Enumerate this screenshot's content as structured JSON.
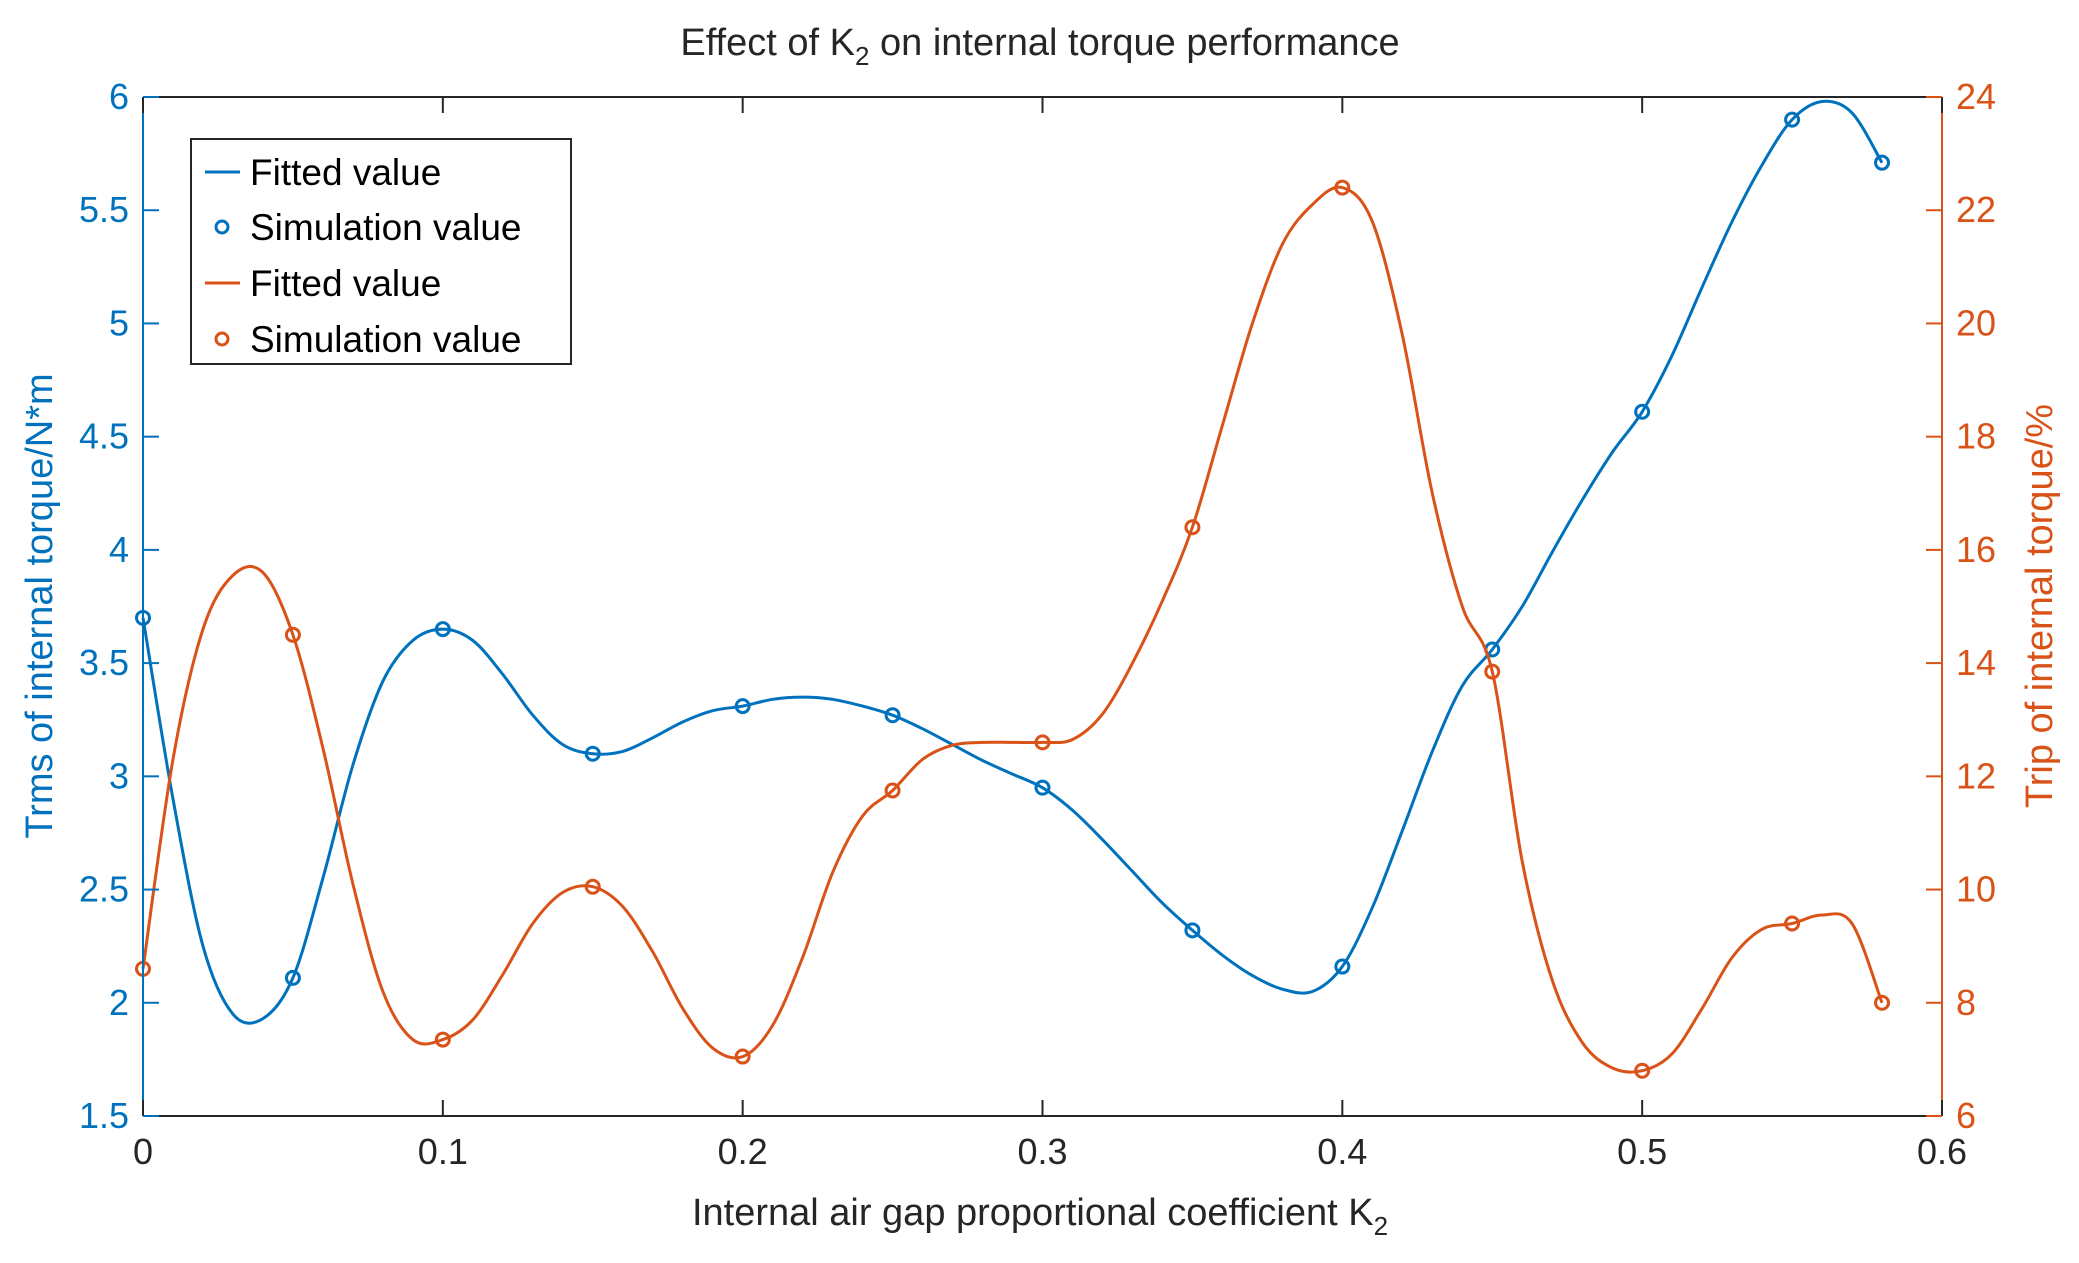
{
  "colors": {
    "left": "#0072BD",
    "right": "#D95319",
    "axis": "#262626"
  },
  "chart_data": {
    "type": "line",
    "title_prefix": "Effect of K",
    "title_sub": "2",
    "title_suffix": " on internal torque performance",
    "xlabel_main": "Internal air gap proportional coefficient K",
    "xlabel_sub": "2",
    "ylabel_left": "Trms of internal torque/N*m",
    "ylabel_right": "Trip of internal torque/%",
    "xlim": [
      0,
      0.6
    ],
    "ylim_left": [
      1.5,
      6
    ],
    "ylim_right": [
      6,
      24
    ],
    "xticks": [
      0,
      0.1,
      0.2,
      0.3,
      0.4,
      0.5,
      0.6
    ],
    "xtick_labels": [
      "0",
      "0.1",
      "0.2",
      "0.3",
      "0.4",
      "0.5",
      "0.6"
    ],
    "yticks_left": [
      1.5,
      2,
      2.5,
      3,
      3.5,
      4,
      4.5,
      5,
      5.5,
      6
    ],
    "ytick_labels_left": [
      "1.5",
      "2",
      "2.5",
      "3",
      "3.5",
      "4",
      "4.5",
      "5",
      "5.5",
      "6"
    ],
    "yticks_right": [
      6,
      8,
      10,
      12,
      14,
      16,
      18,
      20,
      22,
      24
    ],
    "ytick_labels_right": [
      "6",
      "8",
      "10",
      "12",
      "14",
      "16",
      "18",
      "20",
      "22",
      "24"
    ],
    "legend_position": "top-left",
    "series": [
      {
        "name": "Fitted value",
        "axis": "left",
        "style": "line",
        "x": [
          0,
          0.01,
          0.02,
          0.03,
          0.04,
          0.05,
          0.06,
          0.07,
          0.08,
          0.09,
          0.1,
          0.11,
          0.12,
          0.13,
          0.14,
          0.15,
          0.16,
          0.17,
          0.18,
          0.19,
          0.2,
          0.21,
          0.22,
          0.23,
          0.24,
          0.25,
          0.26,
          0.27,
          0.28,
          0.29,
          0.3,
          0.31,
          0.32,
          0.33,
          0.34,
          0.35,
          0.36,
          0.37,
          0.38,
          0.39,
          0.4,
          0.41,
          0.42,
          0.43,
          0.44,
          0.45,
          0.46,
          0.47,
          0.48,
          0.49,
          0.5,
          0.51,
          0.52,
          0.53,
          0.54,
          0.55,
          0.56,
          0.57,
          0.58
        ],
        "y": [
          3.7,
          2.9,
          2.25,
          1.95,
          1.93,
          2.11,
          2.55,
          3.05,
          3.42,
          3.6,
          3.65,
          3.6,
          3.45,
          3.27,
          3.14,
          3.1,
          3.11,
          3.17,
          3.24,
          3.29,
          3.31,
          3.34,
          3.35,
          3.34,
          3.31,
          3.27,
          3.21,
          3.14,
          3.07,
          3.01,
          2.95,
          2.85,
          2.72,
          2.58,
          2.44,
          2.32,
          2.21,
          2.12,
          2.06,
          2.05,
          2.16,
          2.42,
          2.76,
          3.11,
          3.4,
          3.56,
          3.75,
          3.99,
          4.22,
          4.43,
          4.61,
          4.86,
          5.16,
          5.45,
          5.7,
          5.9,
          5.98,
          5.93,
          5.71
        ]
      },
      {
        "name": "Simulation value",
        "axis": "left",
        "style": "marker",
        "x": [
          0,
          0.05,
          0.1,
          0.15,
          0.2,
          0.25,
          0.3,
          0.35,
          0.4,
          0.45,
          0.5,
          0.55,
          0.58
        ],
        "y": [
          3.7,
          2.11,
          3.65,
          3.1,
          3.31,
          3.27,
          2.95,
          2.32,
          2.16,
          3.56,
          4.61,
          5.9,
          5.71
        ]
      },
      {
        "name": "Fitted value",
        "axis": "right",
        "style": "line",
        "x": [
          0,
          0.01,
          0.02,
          0.03,
          0.04,
          0.05,
          0.06,
          0.07,
          0.08,
          0.09,
          0.1,
          0.11,
          0.12,
          0.13,
          0.14,
          0.15,
          0.16,
          0.17,
          0.18,
          0.19,
          0.2,
          0.21,
          0.22,
          0.23,
          0.24,
          0.25,
          0.26,
          0.27,
          0.28,
          0.29,
          0.3,
          0.31,
          0.32,
          0.33,
          0.34,
          0.35,
          0.36,
          0.37,
          0.38,
          0.39,
          0.4,
          0.41,
          0.42,
          0.43,
          0.44,
          0.45,
          0.46,
          0.47,
          0.48,
          0.49,
          0.5,
          0.51,
          0.52,
          0.53,
          0.54,
          0.55,
          0.56,
          0.57,
          0.58
        ],
        "y": [
          8.6,
          12.3,
          14.6,
          15.55,
          15.6,
          14.5,
          12.5,
          10.1,
          8.2,
          7.35,
          7.35,
          7.7,
          8.5,
          9.4,
          9.95,
          10.05,
          9.7,
          8.9,
          7.9,
          7.2,
          7.05,
          7.6,
          8.8,
          10.3,
          11.3,
          11.75,
          12.3,
          12.55,
          12.6,
          12.6,
          12.6,
          12.65,
          13.1,
          14.0,
          15.1,
          16.4,
          18.2,
          20.0,
          21.4,
          22.1,
          22.4,
          21.8,
          19.8,
          17.0,
          15.0,
          13.85,
          10.5,
          8.4,
          7.3,
          6.85,
          6.8,
          7.1,
          7.9,
          8.8,
          9.3,
          9.4,
          9.55,
          9.4,
          8.0
        ]
      },
      {
        "name": "Simulation value",
        "axis": "right",
        "style": "marker",
        "x": [
          0,
          0.05,
          0.1,
          0.15,
          0.2,
          0.25,
          0.3,
          0.35,
          0.4,
          0.45,
          0.5,
          0.55,
          0.58
        ],
        "y": [
          8.6,
          14.5,
          7.35,
          10.05,
          7.05,
          11.75,
          12.6,
          16.4,
          22.4,
          13.85,
          6.8,
          9.4,
          8.0
        ]
      }
    ]
  }
}
